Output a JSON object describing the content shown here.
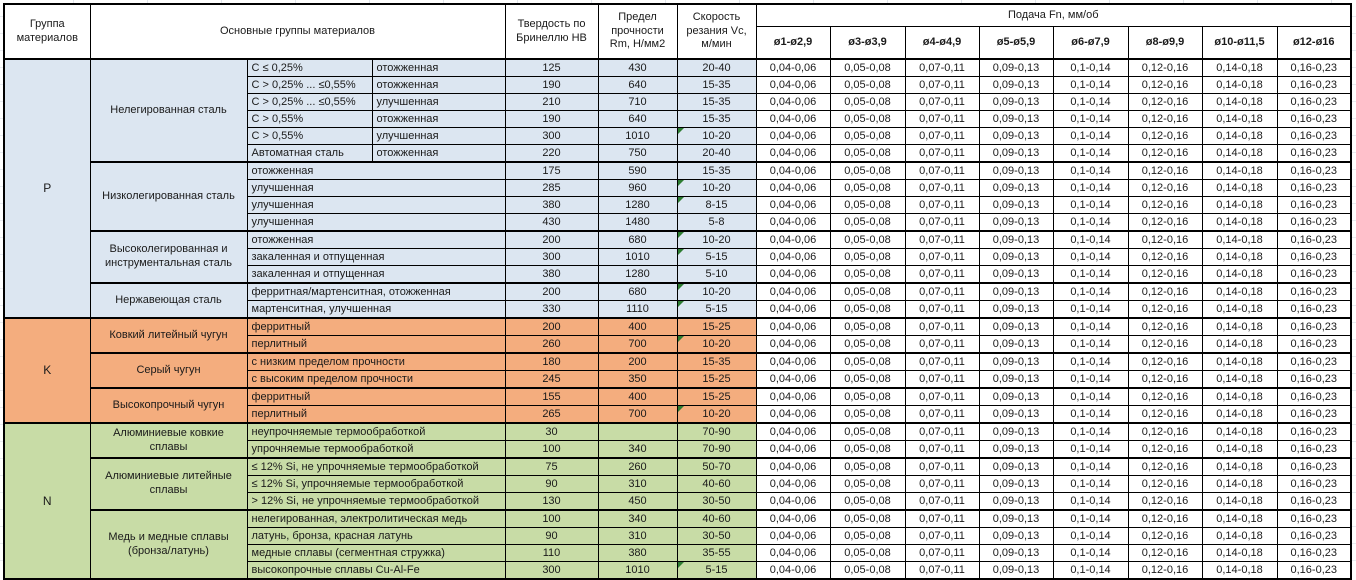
{
  "header": {
    "group_col": "Группа материалов",
    "material_col": "Основные группы материалов",
    "hardness_col": "Твердость по Бринеллю НВ",
    "strength_col": "Предел прочности Rm, Н/мм2",
    "speed_col": "Скорость резания Vc, м/мин",
    "feed_title": "Подача Fn, мм/об",
    "feed_cols": [
      "ø1-ø2,9",
      "ø3-ø3,9",
      "ø4-ø4,9",
      "ø5-ø5,9",
      "ø6-ø7,9",
      "ø8-ø9,9",
      "ø10-ø11,5",
      "ø12-ø16"
    ]
  },
  "feed_values": [
    "0,04-0,06",
    "0,05-0,08",
    "0,07-0,11",
    "0,09-0,13",
    "0,1-0,14",
    "0,12-0,16",
    "0,14-0,18",
    "0,16-0,23"
  ],
  "colors": {
    "group_p": "#dce6f1",
    "group_k": "#f4ad7e",
    "group_n": "#c8dca6",
    "comment_flag": "#2e7d32"
  },
  "groups": [
    {
      "letter": "P",
      "color": "#dce6f1",
      "subgroups": [
        {
          "name": "Нелегированная сталь",
          "rows": [
            {
              "material": "C ≤ 0,25%",
              "state": "отожженная",
              "hb": "125",
              "rm": "430",
              "vc": "20-40",
              "flag": false
            },
            {
              "material": "C > 0,25% ... ≤0,55%",
              "state": "отожженная",
              "hb": "190",
              "rm": "640",
              "vc": "15-35",
              "flag": false
            },
            {
              "material": "C > 0,25% ... ≤0,55%",
              "state": "улучшенная",
              "hb": "210",
              "rm": "710",
              "vc": "15-35",
              "flag": false
            },
            {
              "material": "C > 0,55%",
              "state": "отожженная",
              "hb": "190",
              "rm": "640",
              "vc": "15-35",
              "flag": false
            },
            {
              "material": "C > 0,55%",
              "state": "улучшенная",
              "hb": "300",
              "rm": "1010",
              "vc": "10-20",
              "flag": true
            },
            {
              "material": "Автоматная сталь",
              "state": "отожженная",
              "hb": "220",
              "rm": "750",
              "vc": "20-40",
              "flag": false
            }
          ]
        },
        {
          "name": "Низколегированная сталь",
          "rows": [
            {
              "material": "отожженная",
              "state": null,
              "hb": "175",
              "rm": "590",
              "vc": "15-35",
              "flag": false
            },
            {
              "material": "улучшенная",
              "state": null,
              "hb": "285",
              "rm": "960",
              "vc": "10-20",
              "flag": true
            },
            {
              "material": "улучшенная",
              "state": null,
              "hb": "380",
              "rm": "1280",
              "vc": "8-15",
              "flag": true
            },
            {
              "material": "улучшенная",
              "state": null,
              "hb": "430",
              "rm": "1480",
              "vc": "5-8",
              "flag": false
            }
          ]
        },
        {
          "name": "Высоколегированная и инструментальная сталь",
          "rows": [
            {
              "material": "отожженная",
              "state": null,
              "hb": "200",
              "rm": "680",
              "vc": "10-20",
              "flag": true
            },
            {
              "material": "закаленная и отпущенная",
              "state": null,
              "hb": "300",
              "rm": "1010",
              "vc": "5-15",
              "flag": true
            },
            {
              "material": "закаленная и отпущенная",
              "state": null,
              "hb": "380",
              "rm": "1280",
              "vc": "5-10",
              "flag": false
            }
          ]
        },
        {
          "name": "Нержавеющая сталь",
          "rows": [
            {
              "material": "ферритная/мартенситная, отожженная",
              "state": null,
              "hb": "200",
              "rm": "680",
              "vc": "10-20",
              "flag": true
            },
            {
              "material": "мартенситная, улучшенная",
              "state": null,
              "hb": "330",
              "rm": "1110",
              "vc": "5-15",
              "flag": true
            }
          ]
        }
      ]
    },
    {
      "letter": "K",
      "color": "#f4ad7e",
      "subgroups": [
        {
          "name": "Ковкий литейный чугун",
          "rows": [
            {
              "material": "ферритный",
              "state": null,
              "hb": "200",
              "rm": "400",
              "vc": "15-25",
              "flag": false
            },
            {
              "material": "перлитный",
              "state": null,
              "hb": "260",
              "rm": "700",
              "vc": "10-20",
              "flag": true
            }
          ]
        },
        {
          "name": "Серый чугун",
          "rows": [
            {
              "material": "с низким пределом прочности",
              "state": null,
              "hb": "180",
              "rm": "200",
              "vc": "15-35",
              "flag": false
            },
            {
              "material": "с высоким пределом прочности",
              "state": null,
              "hb": "245",
              "rm": "350",
              "vc": "15-25",
              "flag": false
            }
          ]
        },
        {
          "name": "Высокопрочный чугун",
          "rows": [
            {
              "material": "ферритный",
              "state": null,
              "hb": "155",
              "rm": "400",
              "vc": "15-25",
              "flag": false
            },
            {
              "material": "перлитный",
              "state": null,
              "hb": "265",
              "rm": "700",
              "vc": "10-20",
              "flag": true
            }
          ]
        }
      ]
    },
    {
      "letter": "N",
      "color": "#c8dca6",
      "subgroups": [
        {
          "name": "Алюминиевые ковкие сплавы",
          "rows": [
            {
              "material": "неупрочняемые термообработкой",
              "state": null,
              "hb": "30",
              "rm": "",
              "vc": "70-90",
              "flag": false
            },
            {
              "material": "упрочняемые термообработкой",
              "state": null,
              "hb": "100",
              "rm": "340",
              "vc": "70-90",
              "flag": false
            }
          ]
        },
        {
          "name": "Алюминиевые литейные сплавы",
          "rows": [
            {
              "material": "≤ 12% Si, не упрочняемые термообработкой",
              "state": null,
              "hb": "75",
              "rm": "260",
              "vc": "50-70",
              "flag": false
            },
            {
              "material": "≤ 12% Si, упрочняемые термообработкой",
              "state": null,
              "hb": "90",
              "rm": "310",
              "vc": "40-60",
              "flag": false
            },
            {
              "material": "> 12% Si, не упрочняемые термообработкой",
              "state": null,
              "hb": "130",
              "rm": "450",
              "vc": "30-50",
              "flag": false
            }
          ]
        },
        {
          "name": "Медь и медные сплавы (бронза/латунь)",
          "rows": [
            {
              "material": "нелегированная, электролитическая медь",
              "state": null,
              "hb": "100",
              "rm": "340",
              "vc": "40-60",
              "flag": false
            },
            {
              "material": "латунь, бронза, красная латунь",
              "state": null,
              "hb": "90",
              "rm": "310",
              "vc": "30-50",
              "flag": false
            },
            {
              "material": "медные сплавы (сегментная стружка)",
              "state": null,
              "hb": "110",
              "rm": "380",
              "vc": "35-55",
              "flag": false
            },
            {
              "material": "высокопрочные сплавы Cu-Al-Fe",
              "state": null,
              "hb": "300",
              "rm": "1010",
              "vc": "5-15",
              "flag": true
            }
          ]
        }
      ]
    }
  ]
}
